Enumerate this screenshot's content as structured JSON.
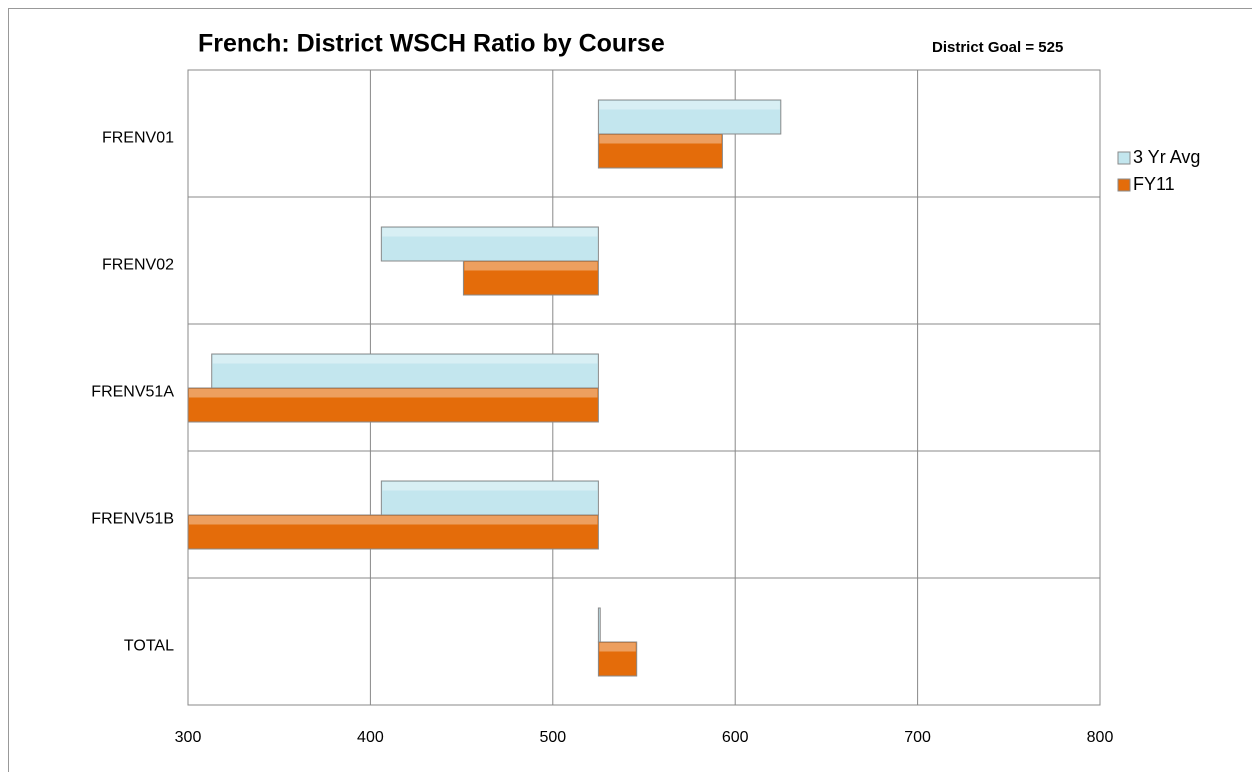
{
  "chart_data": {
    "type": "bar",
    "orientation": "horizontal",
    "title": "French: District WSCH Ratio by Course",
    "annotation": "District Goal = 525",
    "categories": [
      "FRENV01",
      "FRENV02",
      "FRENV51A",
      "FRENV51B",
      "TOTAL"
    ],
    "series": [
      {
        "name": "3 Yr Avg",
        "color": "#c3e6ee",
        "values": [
          625,
          406,
          313,
          406,
          526
        ]
      },
      {
        "name": "FY11",
        "color": "#e46c0a",
        "values": [
          593,
          451,
          300,
          300,
          546
        ]
      }
    ],
    "xcross": 525,
    "xlim": [
      300,
      800
    ],
    "xticks": [
      300,
      400,
      500,
      600,
      700,
      800
    ],
    "grid": true,
    "legend": "right"
  }
}
